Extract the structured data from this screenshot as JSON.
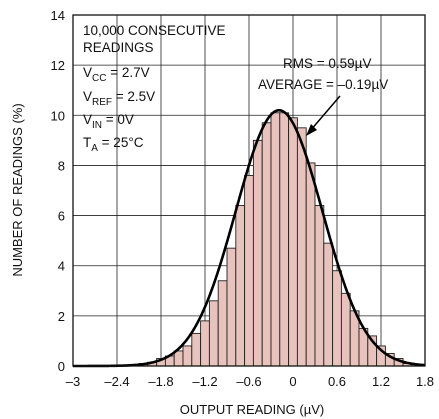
{
  "chart_data": {
    "type": "bar",
    "xlabel": "OUTPUT READING (µV)",
    "ylabel": "NUMBER OF READINGS (%)",
    "xlim": [
      -3,
      1.8
    ],
    "ylim": [
      0,
      14
    ],
    "x_ticks": [
      "–3",
      "–2.4",
      "–1.8",
      "–1.2",
      "–0.6",
      "0",
      "0.6",
      "1.2",
      "1.8"
    ],
    "y_ticks": [
      "0",
      "2",
      "4",
      "6",
      "8",
      "10",
      "12",
      "14"
    ],
    "grid": true,
    "colors": {
      "bar_fill": "#E8C3BD",
      "bar_stroke": "#222222",
      "curve": "#000000",
      "grid": "#222222"
    },
    "bins": {
      "x_start": [
        -2.1,
        -1.98,
        -1.86,
        -1.74,
        -1.62,
        -1.5,
        -1.38,
        -1.26,
        -1.14,
        -1.02,
        -0.9,
        -0.78,
        -0.66,
        -0.54,
        -0.42,
        -0.3,
        -0.18,
        -0.06,
        0.06,
        0.18,
        0.3,
        0.42,
        0.54,
        0.66,
        0.78,
        0.9,
        1.02,
        1.14,
        1.26,
        1.38,
        1.5
      ],
      "width": 0.12,
      "values": [
        0.1,
        0.15,
        0.3,
        0.4,
        0.6,
        0.8,
        1.3,
        1.8,
        2.6,
        3.4,
        4.7,
        6.4,
        7.6,
        9.0,
        9.7,
        10.1,
        10.1,
        9.9,
        9.5,
        8.1,
        6.4,
        4.9,
        3.8,
        2.9,
        2.2,
        1.5,
        1.2,
        0.8,
        0.5,
        0.3,
        0.1
      ]
    },
    "fit_curve": {
      "type": "gaussian",
      "mean": -0.19,
      "sigma": 0.59,
      "peak": 10.2
    },
    "annotations": {
      "readings": "10,000 CONSECUTIVE READINGS",
      "vcc": "V<sub>CC</sub> = 2.7V",
      "vref": "V<sub>REF</sub> = 2.5V",
      "vin": "V<sub>IN</sub> = 0V",
      "ta": "T<sub>A</sub> = 25°C",
      "rms": "RMS = 0.59µV",
      "average": "AVERAGE = –0.19µV"
    }
  }
}
